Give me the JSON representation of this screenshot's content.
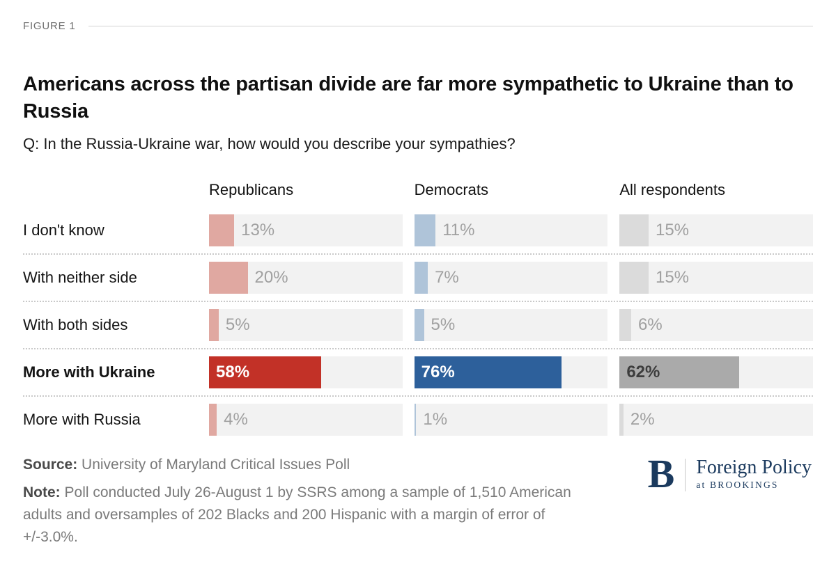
{
  "figure_label": "FIGURE 1",
  "title": "Americans across the partisan divide are far more sympathetic to Ukraine than to Russia",
  "subtitle": "Q: In the Russia-Ukraine war, how would you describe your sympathies?",
  "chart_data": {
    "type": "bar",
    "orientation": "horizontal",
    "title": "Americans across the partisan divide are far more sympathetic to Ukraine than to Russia",
    "subtitle": "Q: In the Russia-Ukraine war, how would you describe your sympathies?",
    "categories": [
      "I don't know",
      "With neither side",
      "With both sides",
      "More with Ukraine",
      "More with Russia"
    ],
    "highlight_category": "More with Ukraine",
    "series": [
      {
        "name": "Republicans",
        "values": [
          13,
          20,
          5,
          58,
          4
        ],
        "muted_color": "#e0a8a1",
        "highlight_color": "#c23127",
        "highlight_text_color": "#ffffff"
      },
      {
        "name": "Democrats",
        "values": [
          11,
          7,
          5,
          76,
          1
        ],
        "muted_color": "#afc4d9",
        "highlight_color": "#2d609b",
        "highlight_text_color": "#ffffff"
      },
      {
        "name": "All respondents",
        "values": [
          15,
          15,
          6,
          62,
          2
        ],
        "muted_color": "#dbdbdb",
        "highlight_color": "#aaaaaa",
        "highlight_text_color": "#3d3d3d"
      }
    ],
    "xlim": [
      0,
      100
    ],
    "value_suffix": "%",
    "track_color": "#f2f2f2",
    "muted_value_color": "#a0a0a0",
    "grid": "off",
    "legend_position": "column-headers"
  },
  "footer": {
    "source_label": "Source:",
    "source_text": "University of Maryland Critical Issues Poll",
    "note_label": "Note:",
    "note_text": "Poll conducted July 26-August 1 by SSRS among a sample of 1,510 American adults and oversamples of 202 Blacks and 200 Hispanic with a margin of error of +/-3.0%."
  },
  "logo": {
    "monogram": "B",
    "line1": "Foreign Policy",
    "line2": "at BROOKINGS",
    "color": "#1b3a5e"
  }
}
